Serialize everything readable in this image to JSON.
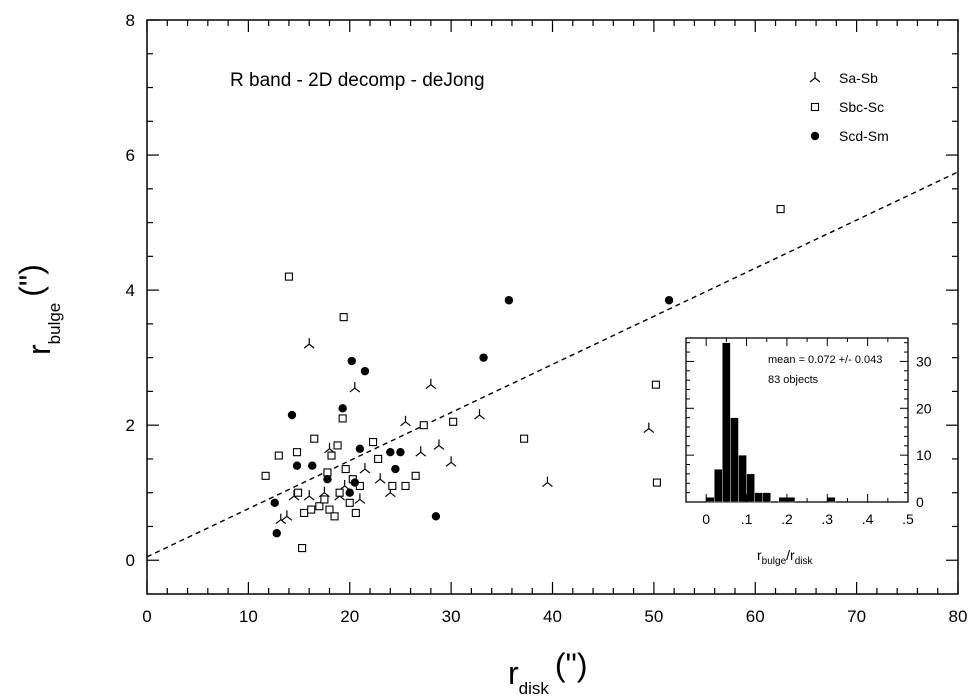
{
  "chart_data": [
    {
      "type": "scatter",
      "annotation": "R band - 2D decomp - deJong",
      "xlabel_main": "r",
      "xlabel_sub": "disk",
      "xlabel_unit": "(\")",
      "ylabel_main": "r",
      "ylabel_sub": "bulge",
      "ylabel_unit": "(\")",
      "xlim": [
        0,
        80
      ],
      "ylim": [
        -0.5,
        8
      ],
      "x_ticks": [
        0,
        10,
        20,
        30,
        40,
        50,
        60,
        70,
        80
      ],
      "y_ticks": [
        0,
        2,
        4,
        6,
        8
      ],
      "legend_position": "top-right",
      "fit_line": {
        "style": "dashed",
        "points": [
          [
            0,
            0.05
          ],
          [
            80,
            5.75
          ]
        ]
      },
      "series": [
        {
          "name": "Sa-Sb",
          "marker": "tripod",
          "points": [
            [
              13.2,
              0.6
            ],
            [
              13.8,
              0.65
            ],
            [
              14.5,
              0.95
            ],
            [
              16.0,
              0.95
            ],
            [
              16.0,
              3.2
            ],
            [
              17.5,
              1.0
            ],
            [
              18.0,
              1.65
            ],
            [
              19.0,
              0.95
            ],
            [
              19.5,
              1.1
            ],
            [
              20.5,
              2.55
            ],
            [
              21.0,
              0.9
            ],
            [
              21.5,
              1.35
            ],
            [
              23.0,
              1.2
            ],
            [
              24.0,
              1.0
            ],
            [
              25.5,
              2.05
            ],
            [
              27.0,
              1.6
            ],
            [
              28.0,
              2.6
            ],
            [
              28.8,
              1.7
            ],
            [
              30.0,
              1.45
            ],
            [
              32.8,
              2.15
            ],
            [
              39.5,
              1.15
            ],
            [
              49.5,
              1.95
            ]
          ]
        },
        {
          "name": "Sbc-Sc",
          "marker": "open-square",
          "points": [
            [
              11.7,
              1.25
            ],
            [
              13.0,
              1.55
            ],
            [
              14.0,
              4.2
            ],
            [
              14.8,
              1.6
            ],
            [
              14.9,
              1.0
            ],
            [
              15.5,
              0.7
            ],
            [
              15.3,
              0.18
            ],
            [
              16.2,
              0.75
            ],
            [
              16.5,
              1.8
            ],
            [
              17.0,
              0.8
            ],
            [
              17.5,
              0.9
            ],
            [
              17.8,
              1.3
            ],
            [
              18.0,
              0.75
            ],
            [
              18.2,
              1.55
            ],
            [
              18.5,
              0.65
            ],
            [
              18.8,
              1.7
            ],
            [
              19.0,
              1.0
            ],
            [
              19.3,
              2.1
            ],
            [
              19.4,
              3.6
            ],
            [
              19.6,
              1.35
            ],
            [
              20.0,
              0.85
            ],
            [
              20.3,
              1.2
            ],
            [
              20.6,
              0.7
            ],
            [
              21.0,
              1.1
            ],
            [
              22.3,
              1.75
            ],
            [
              22.8,
              1.5
            ],
            [
              24.2,
              1.1
            ],
            [
              25.5,
              1.1
            ],
            [
              26.5,
              1.25
            ],
            [
              27.3,
              2.0
            ],
            [
              30.2,
              2.05
            ],
            [
              37.2,
              1.8
            ],
            [
              50.2,
              2.6
            ],
            [
              50.3,
              1.15
            ],
            [
              62.5,
              5.2
            ]
          ]
        },
        {
          "name": "Scd-Sm",
          "marker": "filled-circle",
          "points": [
            [
              12.6,
              0.85
            ],
            [
              12.8,
              0.4
            ],
            [
              14.3,
              2.15
            ],
            [
              14.8,
              1.4
            ],
            [
              16.3,
              1.4
            ],
            [
              17.8,
              1.2
            ],
            [
              19.3,
              2.25
            ],
            [
              20.0,
              1.0
            ],
            [
              20.2,
              2.95
            ],
            [
              20.5,
              1.15
            ],
            [
              21.0,
              1.65
            ],
            [
              21.5,
              2.8
            ],
            [
              24.0,
              1.6
            ],
            [
              24.5,
              1.35
            ],
            [
              25.0,
              1.6
            ],
            [
              28.5,
              0.65
            ],
            [
              33.2,
              3.0
            ],
            [
              35.7,
              3.85
            ],
            [
              51.5,
              3.85
            ]
          ]
        }
      ]
    },
    {
      "type": "bar",
      "inset": true,
      "title": "",
      "annotation_lines": [
        "mean = 0.072 +/- 0.043",
        "83 objects"
      ],
      "xlabel_main": "r",
      "xlabel_sub1": "bulge",
      "xlabel_slash": "/r",
      "xlabel_sub2": "disk",
      "xlim": [
        -0.05,
        0.5
      ],
      "ylim": [
        0,
        35
      ],
      "x_ticks": [
        "0",
        ".1",
        ".2",
        ".3",
        ".4",
        ".5"
      ],
      "x_tick_values": [
        0,
        0.1,
        0.2,
        0.3,
        0.4,
        0.5
      ],
      "y_ticks": [
        0,
        10,
        20,
        30
      ],
      "bins": [
        {
          "left": 0.0,
          "right": 0.02,
          "value": 1
        },
        {
          "left": 0.02,
          "right": 0.04,
          "value": 7
        },
        {
          "left": 0.04,
          "right": 0.06,
          "value": 34
        },
        {
          "left": 0.06,
          "right": 0.08,
          "value": 18
        },
        {
          "left": 0.08,
          "right": 0.1,
          "value": 10
        },
        {
          "left": 0.1,
          "right": 0.12,
          "value": 6
        },
        {
          "left": 0.12,
          "right": 0.14,
          "value": 2
        },
        {
          "left": 0.14,
          "right": 0.16,
          "value": 2
        },
        {
          "left": 0.18,
          "right": 0.2,
          "value": 1
        },
        {
          "left": 0.2,
          "right": 0.22,
          "value": 1
        },
        {
          "left": 0.3,
          "right": 0.32,
          "value": 1
        }
      ]
    }
  ]
}
